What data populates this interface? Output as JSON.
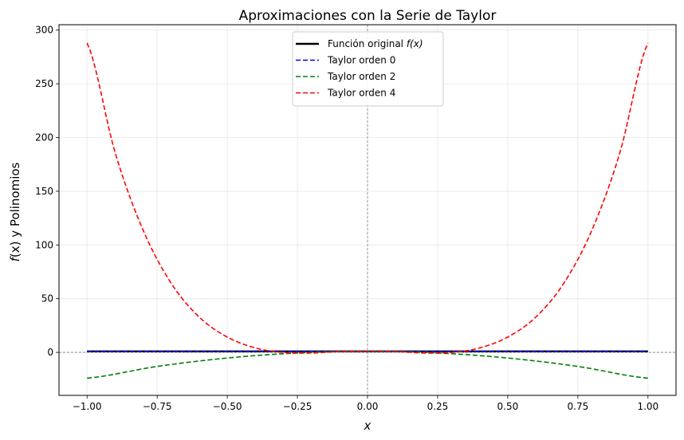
{
  "chart_data": {
    "type": "line",
    "title": "Aproximaciones con la Serie de Taylor",
    "xlabel": "x",
    "ylabel_func": "f",
    "ylabel_arg": "(x)",
    "ylabel_rest": " y Polinomios",
    "xlim": [
      -1.1,
      1.1
    ],
    "ylim": [
      -40,
      305
    ],
    "xticks": [
      -1.0,
      -0.75,
      -0.5,
      -0.25,
      0.0,
      0.25,
      0.5,
      0.75,
      1.0
    ],
    "xtick_labels": [
      "−1.00",
      "−0.75",
      "−0.50",
      "−0.25",
      "0.00",
      "0.25",
      "0.50",
      "0.75",
      "1.00"
    ],
    "yticks": [
      0,
      50,
      100,
      150,
      200,
      250,
      300
    ],
    "ytick_labels": [
      "0",
      "50",
      "100",
      "150",
      "200",
      "250",
      "300"
    ],
    "grid": true,
    "legend_position": "top-center",
    "reference_lines": {
      "x": 0,
      "y": 0
    },
    "series": [
      {
        "name": "Función original",
        "name_math": "f(x)",
        "color": "#000000",
        "style": "solid",
        "x": [
          -1.0,
          -0.5,
          0.0,
          0.5,
          1.0
        ],
        "y": [
          1.0,
          1.0,
          1.0,
          1.0,
          1.0
        ]
      },
      {
        "name": "Taylor orden 0",
        "color": "#0000ff",
        "style": "dashed",
        "x": [
          -1.0,
          -0.5,
          0.0,
          0.5,
          1.0
        ],
        "y": [
          1.0,
          1.0,
          1.0,
          1.0,
          1.0
        ]
      },
      {
        "name": "Taylor orden 2",
        "color": "#008000",
        "style": "dashed",
        "x": [
          -1.0,
          -0.75,
          -0.5,
          -0.25,
          0.0,
          0.25,
          0.5,
          0.75,
          1.0
        ],
        "y": [
          -24.0,
          -13.06,
          -5.25,
          -0.56,
          1.0,
          -0.56,
          -5.25,
          -13.06,
          -24.0
        ]
      },
      {
        "name": "Taylor orden 4",
        "color": "#ff0000",
        "style": "dashed",
        "x": [
          -1.0,
          -0.9,
          -0.8,
          -0.7,
          -0.6,
          -0.5,
          -0.4,
          -0.3,
          -0.2,
          -0.1,
          0.0,
          0.1,
          0.2,
          0.3,
          0.4,
          0.5,
          0.6,
          0.7,
          0.8,
          0.9,
          1.0
        ],
        "y": [
          288.0,
          186.04,
          113.73,
          64.4,
          32.87,
          14.25,
          4.15,
          -0.1,
          -0.57,
          0.77,
          1.0,
          0.77,
          -0.57,
          -0.1,
          4.15,
          14.25,
          32.87,
          64.4,
          113.73,
          186.04,
          288.0
        ]
      }
    ]
  }
}
